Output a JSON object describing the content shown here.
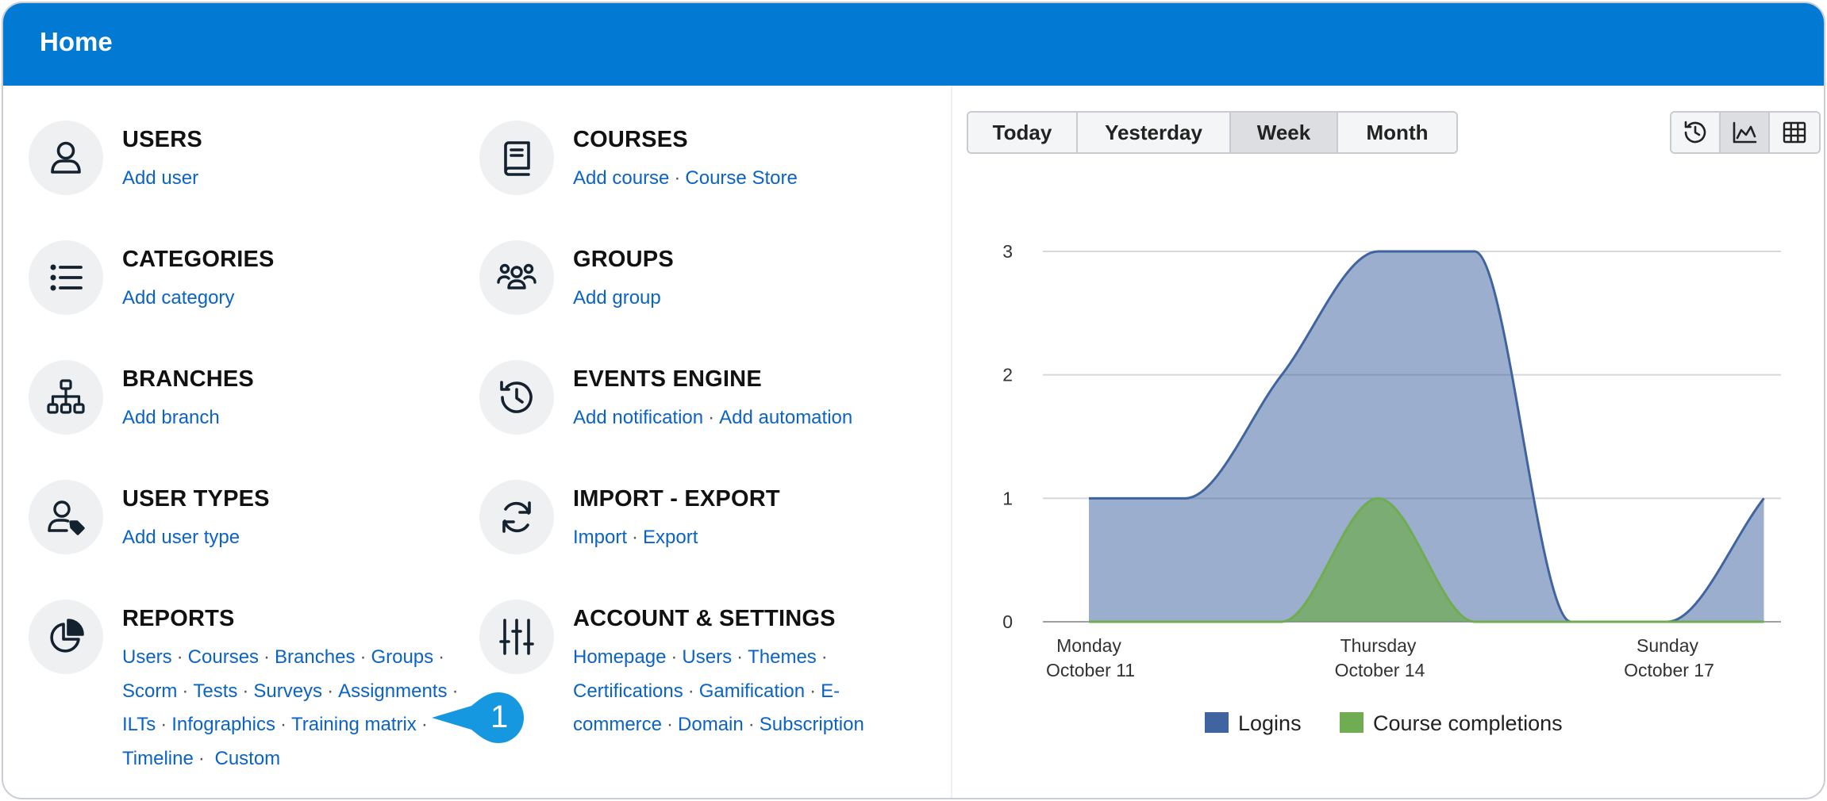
{
  "header": {
    "title": "Home"
  },
  "tiles": {
    "users": {
      "title": "USERS",
      "links": [
        "Add user"
      ]
    },
    "courses": {
      "title": "COURSES",
      "links": [
        "Add course",
        "Course Store"
      ]
    },
    "categories": {
      "title": "CATEGORIES",
      "links": [
        "Add category"
      ]
    },
    "groups": {
      "title": "GROUPS",
      "links": [
        "Add group"
      ]
    },
    "branches": {
      "title": "BRANCHES",
      "links": [
        "Add branch"
      ]
    },
    "events": {
      "title": "EVENTS ENGINE",
      "links": [
        "Add notification",
        "Add automation"
      ]
    },
    "user_types": {
      "title": "USER TYPES",
      "links": [
        "Add user type"
      ]
    },
    "import_export": {
      "title": "IMPORT - EXPORT",
      "links": [
        "Import",
        "Export"
      ]
    },
    "reports": {
      "title": "REPORTS",
      "links": [
        "Users",
        "Courses",
        "Branches",
        "Groups",
        "Scorm",
        "Tests",
        "Surveys",
        "Assignments",
        "ILTs",
        "Infographics",
        "Training matrix",
        "Timeline",
        "Custom"
      ]
    },
    "account": {
      "title": "ACCOUNT & SETTINGS",
      "links": [
        "Homepage",
        "Users",
        "Themes",
        "Certifications",
        "Gamification",
        "E-",
        "commerce",
        "Domain",
        "Subscription"
      ]
    }
  },
  "callout": {
    "number": "1"
  },
  "range_tabs": [
    "Today",
    "Yesterday",
    "Week",
    "Month"
  ],
  "range_selected": "Week",
  "view_buttons": [
    {
      "icon": "history-icon",
      "active": false
    },
    {
      "icon": "area-chart-icon",
      "active": true
    },
    {
      "icon": "table-grid-icon",
      "active": false
    }
  ],
  "colors": {
    "header": "#0279d2",
    "link": "#0b63c5",
    "logins": "#3f64a0",
    "completions": "#6fac52"
  },
  "chart_data": {
    "type": "area",
    "x": [
      "2021-10-11",
      "2021-10-12",
      "2021-10-13",
      "2021-10-14",
      "2021-10-15",
      "2021-10-16",
      "2021-10-17",
      "2021-10-18"
    ],
    "x_tick_labels": [
      {
        "x": "2021-10-11",
        "lines": [
          "Monday",
          "October 11"
        ]
      },
      {
        "x": "2021-10-14",
        "lines": [
          "Thursday",
          "October 14"
        ]
      },
      {
        "x": "2021-10-17",
        "lines": [
          "Sunday",
          "October 17"
        ]
      }
    ],
    "y_ticks": [
      0,
      1,
      2,
      3
    ],
    "ylim": [
      0,
      3
    ],
    "grid": true,
    "legend_position": "bottom",
    "series": [
      {
        "name": "Logins",
        "color": "#3f64a0",
        "values": [
          1,
          1,
          2,
          3,
          3,
          0,
          0,
          1
        ]
      },
      {
        "name": "Course completions",
        "color": "#6fac52",
        "values": [
          0,
          0,
          0,
          1,
          0,
          0,
          0,
          0
        ]
      }
    ]
  }
}
